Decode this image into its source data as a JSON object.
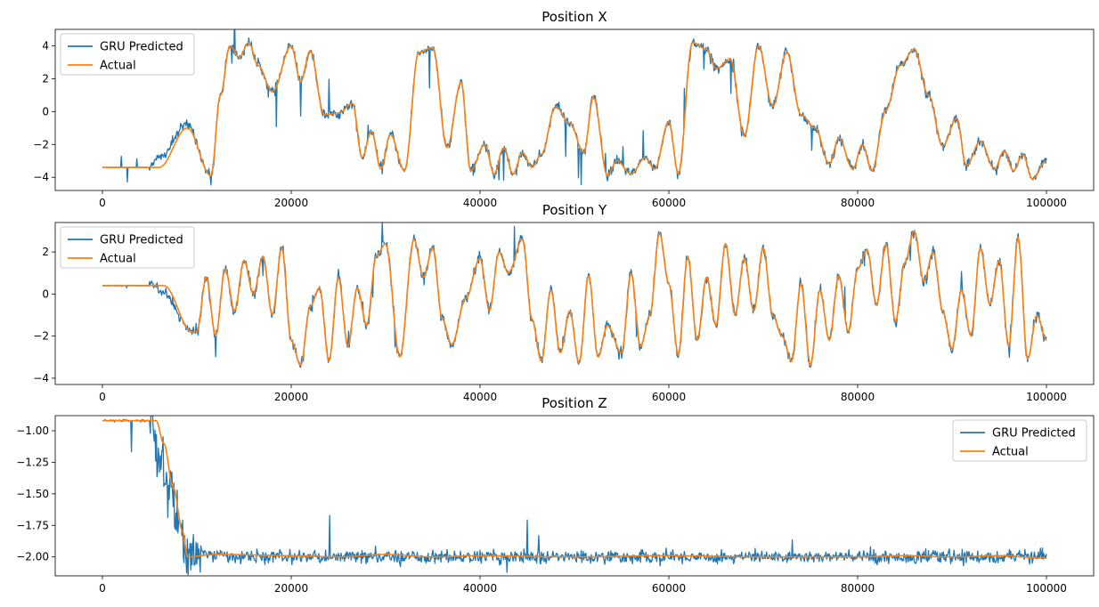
{
  "figure": {
    "background": "#ffffff"
  },
  "colors": {
    "predicted": "#1f77b4",
    "actual": "#ff7f0e"
  },
  "chart_data": [
    {
      "type": "line",
      "title": "Position X",
      "xlim": [
        -5000,
        105000
      ],
      "ylim": [
        -4.8,
        5.0
      ],
      "xticks": [
        0,
        20000,
        40000,
        60000,
        80000,
        100000
      ],
      "xtick_labels": [
        "0",
        "20000",
        "40000",
        "60000",
        "80000",
        "100000"
      ],
      "yticks": [
        -4,
        -2,
        0,
        2,
        4
      ],
      "ytick_labels": [
        "−4",
        "−2",
        "0",
        "2",
        "4"
      ],
      "legend": "top-left",
      "series": [
        {
          "name": "GRU Predicted",
          "color": "#1f77b4",
          "noise": 0.3,
          "spikes": 0.02,
          "x": [
            0,
            5000,
            6000,
            9000,
            11500,
            12500,
            13500,
            14500,
            15500,
            16500,
            18000,
            20000,
            21000,
            22000,
            23500,
            25000,
            26500,
            27500,
            28500,
            29500,
            30500,
            32000,
            33500,
            35000,
            36500,
            38000,
            39000,
            40500,
            41500,
            42500,
            43500,
            44500,
            45500,
            46500,
            48000,
            49500,
            51000,
            52000,
            53500,
            54500,
            56000,
            57500,
            58500,
            60000,
            61000,
            62500,
            64000,
            65000,
            66500,
            68000,
            69500,
            71000,
            72500,
            74000,
            75500,
            77000,
            78000,
            79500,
            80500,
            81500,
            83000,
            84500,
            86000,
            87500,
            89000,
            90500,
            91500,
            93000,
            94500,
            95500,
            96500,
            97500,
            98500,
            100000
          ],
          "y": [
            -3.4,
            -3.4,
            -2.8,
            -0.8,
            -3.9,
            1.0,
            4.0,
            3.3,
            4.2,
            2.8,
            1.2,
            4.0,
            1.8,
            3.7,
            -0.2,
            -0.1,
            0.5,
            -2.8,
            -1.2,
            -3.5,
            -1.4,
            -3.6,
            3.6,
            3.9,
            -2.2,
            1.8,
            -3.6,
            -2.0,
            -3.8,
            -2.2,
            -3.8,
            -2.5,
            -3.4,
            -2.6,
            0.3,
            -0.7,
            -2.5,
            0.9,
            -3.9,
            -3.0,
            -3.8,
            -2.8,
            -3.5,
            -0.6,
            -3.8,
            4.2,
            3.8,
            2.6,
            3.2,
            -1.5,
            4.0,
            0.3,
            3.6,
            -0.2,
            -1.0,
            -3.2,
            -1.6,
            -3.5,
            -2.0,
            -3.6,
            0.1,
            2.8,
            3.8,
            1.0,
            -2.1,
            -0.4,
            -3.3,
            -1.8,
            -3.5,
            -2.4,
            -3.6,
            -2.6,
            -4.1,
            -3.0
          ]
        },
        {
          "name": "Actual",
          "color": "#ff7f0e",
          "noise": 0,
          "spikes": 0,
          "x": [
            0,
            5000,
            6000,
            9000,
            11500,
            12500,
            13500,
            14500,
            15500,
            16500,
            18000,
            20000,
            21000,
            22000,
            23500,
            25000,
            26500,
            27500,
            28500,
            29500,
            30500,
            32000,
            33500,
            35000,
            36500,
            38000,
            39000,
            40500,
            41500,
            42500,
            43500,
            44500,
            45500,
            46500,
            48000,
            49500,
            51000,
            52000,
            53500,
            54500,
            56000,
            57500,
            58500,
            60000,
            61000,
            62500,
            64000,
            65000,
            66500,
            68000,
            69500,
            71000,
            72500,
            74000,
            75500,
            77000,
            78000,
            79500,
            80500,
            81500,
            83000,
            84500,
            86000,
            87500,
            89000,
            90500,
            91500,
            93000,
            94500,
            95500,
            96500,
            97500,
            98500,
            100000
          ],
          "y": [
            -3.4,
            -3.4,
            -3.4,
            -1.0,
            -3.9,
            1.0,
            4.0,
            3.3,
            4.2,
            2.8,
            1.2,
            4.0,
            1.8,
            3.7,
            -0.2,
            -0.1,
            0.5,
            -2.8,
            -1.2,
            -3.5,
            -1.4,
            -3.6,
            3.6,
            3.9,
            -2.2,
            1.8,
            -3.6,
            -2.0,
            -3.8,
            -2.2,
            -3.8,
            -2.5,
            -3.4,
            -2.6,
            0.3,
            -0.7,
            -2.5,
            0.9,
            -3.9,
            -3.0,
            -3.8,
            -2.8,
            -3.5,
            -0.6,
            -3.8,
            4.2,
            3.8,
            2.6,
            3.2,
            -1.5,
            4.0,
            0.3,
            3.6,
            -0.2,
            -1.0,
            -3.2,
            -1.6,
            -3.5,
            -2.0,
            -3.6,
            0.1,
            2.8,
            3.8,
            1.0,
            -2.1,
            -0.4,
            -3.3,
            -1.8,
            -3.5,
            -2.4,
            -3.6,
            -2.6,
            -4.1,
            -3.0
          ]
        }
      ]
    },
    {
      "type": "line",
      "title": "Position Y",
      "xlim": [
        -5000,
        105000
      ],
      "ylim": [
        -4.3,
        3.4
      ],
      "xticks": [
        0,
        20000,
        40000,
        60000,
        80000,
        100000
      ],
      "xtick_labels": [
        "0",
        "20000",
        "40000",
        "60000",
        "80000",
        "100000"
      ],
      "yticks": [
        -4,
        -2,
        0,
        2
      ],
      "ytick_labels": [
        "−4",
        "−2",
        "0",
        "2"
      ],
      "legend": "top-left",
      "series": [
        {
          "name": "GRU Predicted",
          "color": "#1f77b4",
          "noise": 0.25,
          "spikes": 0.01,
          "x": [
            0,
            5500,
            6500,
            9500,
            10000,
            11000,
            12000,
            13000,
            14000,
            15000,
            16000,
            17000,
            18000,
            19000,
            20000,
            21000,
            22000,
            23000,
            24000,
            25000,
            26000,
            27000,
            28000,
            29000,
            30000,
            31500,
            33000,
            34000,
            35000,
            36000,
            37000,
            38500,
            40000,
            41000,
            42000,
            43000,
            44500,
            45500,
            46500,
            47500,
            48500,
            49500,
            50500,
            51500,
            52500,
            53500,
            55000,
            56000,
            57000,
            58000,
            59000,
            60000,
            61000,
            62000,
            63000,
            64000,
            65000,
            66000,
            67000,
            68000,
            69000,
            70000,
            71000,
            72000,
            73000,
            74000,
            75000,
            76000,
            77000,
            78000,
            79000,
            80000,
            81000,
            82000,
            83000,
            84000,
            85000,
            86000,
            87000,
            88000,
            89000,
            90000,
            91000,
            92000,
            93000,
            94000,
            95000,
            96000,
            97000,
            98000,
            99000,
            100000
          ],
          "y": [
            0.4,
            0.4,
            0.0,
            -1.8,
            -1.8,
            0.8,
            -2.0,
            1.2,
            -0.8,
            1.6,
            0.0,
            1.8,
            -1.0,
            2.2,
            -2.2,
            -3.4,
            -0.6,
            0.3,
            -3.2,
            0.8,
            -2.5,
            0.3,
            -1.5,
            1.8,
            2.4,
            -3.0,
            2.6,
            0.8,
            2.2,
            -1.2,
            -2.4,
            -0.2,
            1.7,
            -0.8,
            2.0,
            1.0,
            2.6,
            -1.2,
            -3.2,
            0.2,
            -2.8,
            -0.8,
            -3.3,
            0.9,
            -3.0,
            -1.5,
            -2.8,
            1.0,
            -2.5,
            -1.0,
            2.9,
            0.5,
            -2.9,
            1.8,
            -2.2,
            0.8,
            -1.5,
            2.4,
            -1.0,
            1.7,
            -0.8,
            2.2,
            -1.0,
            -2.0,
            -3.2,
            0.5,
            -3.4,
            0.2,
            -2.2,
            0.9,
            -1.8,
            1.2,
            2.1,
            -0.5,
            2.4,
            -1.3,
            1.5,
            3.0,
            0.6,
            2.0,
            -0.8,
            -2.6,
            0.2,
            -2.0,
            2.2,
            -0.5,
            1.6,
            -2.5,
            2.7,
            -3.1,
            -1.0,
            -2.2
          ]
        },
        {
          "name": "Actual",
          "color": "#ff7f0e",
          "noise": 0,
          "spikes": 0,
          "x": [
            0,
            5500,
            6500,
            9500,
            10000,
            11000,
            12000,
            13000,
            14000,
            15000,
            16000,
            17000,
            18000,
            19000,
            20000,
            21000,
            22000,
            23000,
            24000,
            25000,
            26000,
            27000,
            28000,
            29000,
            30000,
            31500,
            33000,
            34000,
            35000,
            36000,
            37000,
            38500,
            40000,
            41000,
            42000,
            43000,
            44500,
            45500,
            46500,
            47500,
            48500,
            49500,
            50500,
            51500,
            52500,
            53500,
            55000,
            56000,
            57000,
            58000,
            59000,
            60000,
            61000,
            62000,
            63000,
            64000,
            65000,
            66000,
            67000,
            68000,
            69000,
            70000,
            71000,
            72000,
            73000,
            74000,
            75000,
            76000,
            77000,
            78000,
            79000,
            80000,
            81000,
            82000,
            83000,
            84000,
            85000,
            86000,
            87000,
            88000,
            89000,
            90000,
            91000,
            92000,
            93000,
            94000,
            95000,
            96000,
            97000,
            98000,
            99000,
            100000
          ],
          "y": [
            0.4,
            0.4,
            0.4,
            -1.8,
            -1.8,
            0.8,
            -2.0,
            1.2,
            -0.8,
            1.6,
            0.0,
            1.8,
            -1.0,
            2.2,
            -2.2,
            -3.4,
            -0.6,
            0.3,
            -3.2,
            0.8,
            -2.5,
            0.3,
            -1.5,
            1.8,
            2.4,
            -3.0,
            2.6,
            0.8,
            2.2,
            -1.2,
            -2.4,
            -0.2,
            1.7,
            -0.8,
            2.0,
            1.0,
            2.6,
            -1.2,
            -3.2,
            0.2,
            -2.8,
            -0.8,
            -3.3,
            0.9,
            -3.0,
            -1.5,
            -2.8,
            1.0,
            -2.5,
            -1.0,
            2.9,
            0.5,
            -2.9,
            1.8,
            -2.2,
            0.8,
            -1.5,
            2.4,
            -1.0,
            1.7,
            -0.8,
            2.2,
            -1.0,
            -2.0,
            -3.2,
            0.5,
            -3.4,
            0.2,
            -2.2,
            0.9,
            -1.8,
            1.2,
            2.1,
            -0.5,
            2.4,
            -1.3,
            1.5,
            3.0,
            0.6,
            2.0,
            -0.8,
            -2.6,
            0.2,
            -2.0,
            2.2,
            -0.5,
            1.6,
            -2.5,
            2.7,
            -3.1,
            -1.0,
            -2.2
          ]
        }
      ]
    },
    {
      "type": "line",
      "title": "Position Z",
      "xlim": [
        -5000,
        105000
      ],
      "ylim": [
        -2.15,
        -0.88
      ],
      "xticks": [
        0,
        20000,
        40000,
        60000,
        80000,
        100000
      ],
      "xtick_labels": [
        "0",
        "20000",
        "40000",
        "60000",
        "80000",
        "100000"
      ],
      "yticks": [
        -1.0,
        -1.25,
        -1.5,
        -1.75,
        -2.0
      ],
      "ytick_labels": [
        "−1.00",
        "−1.25",
        "−1.50",
        "−1.75",
        "−2.00"
      ],
      "legend": "top-right",
      "series": [
        {
          "name": "GRU Predicted",
          "color": "#1f77b4",
          "noise": 0.05,
          "spikes": 0.005,
          "x": [
            0,
            5000,
            6000,
            7000,
            8000,
            9000,
            10000,
            11000,
            15000,
            20000,
            25000,
            30000,
            35000,
            40000,
            45000,
            50000,
            55000,
            60000,
            65000,
            70000,
            75000,
            80000,
            85000,
            90000,
            95000,
            100000
          ],
          "y": [
            -0.92,
            -0.92,
            -1.2,
            -1.45,
            -1.7,
            -1.95,
            -1.97,
            -1.98,
            -2.0,
            -2.0,
            -2.0,
            -2.0,
            -2.0,
            -2.0,
            -2.0,
            -2.0,
            -2.0,
            -2.0,
            -2.0,
            -2.0,
            -2.0,
            -2.0,
            -2.0,
            -2.0,
            -2.0,
            -2.0
          ]
        },
        {
          "name": "Actual",
          "color": "#ff7f0e",
          "noise": 0,
          "spikes": 0,
          "x": [
            0,
            5700,
            6500,
            7500,
            8500,
            9000,
            12000,
            20000,
            25000,
            30000,
            35000,
            40000,
            50000,
            60000,
            70000,
            72000,
            80000,
            85000,
            90000,
            95000,
            100000
          ],
          "y": [
            -0.92,
            -0.92,
            -1.1,
            -1.45,
            -1.8,
            -2.0,
            -1.98,
            -1.99,
            -2.0,
            -1.98,
            -2.0,
            -1.99,
            -2.0,
            -1.99,
            -2.0,
            -2.0,
            -2.0,
            -1.99,
            -2.0,
            -1.99,
            -2.01
          ]
        }
      ]
    }
  ]
}
